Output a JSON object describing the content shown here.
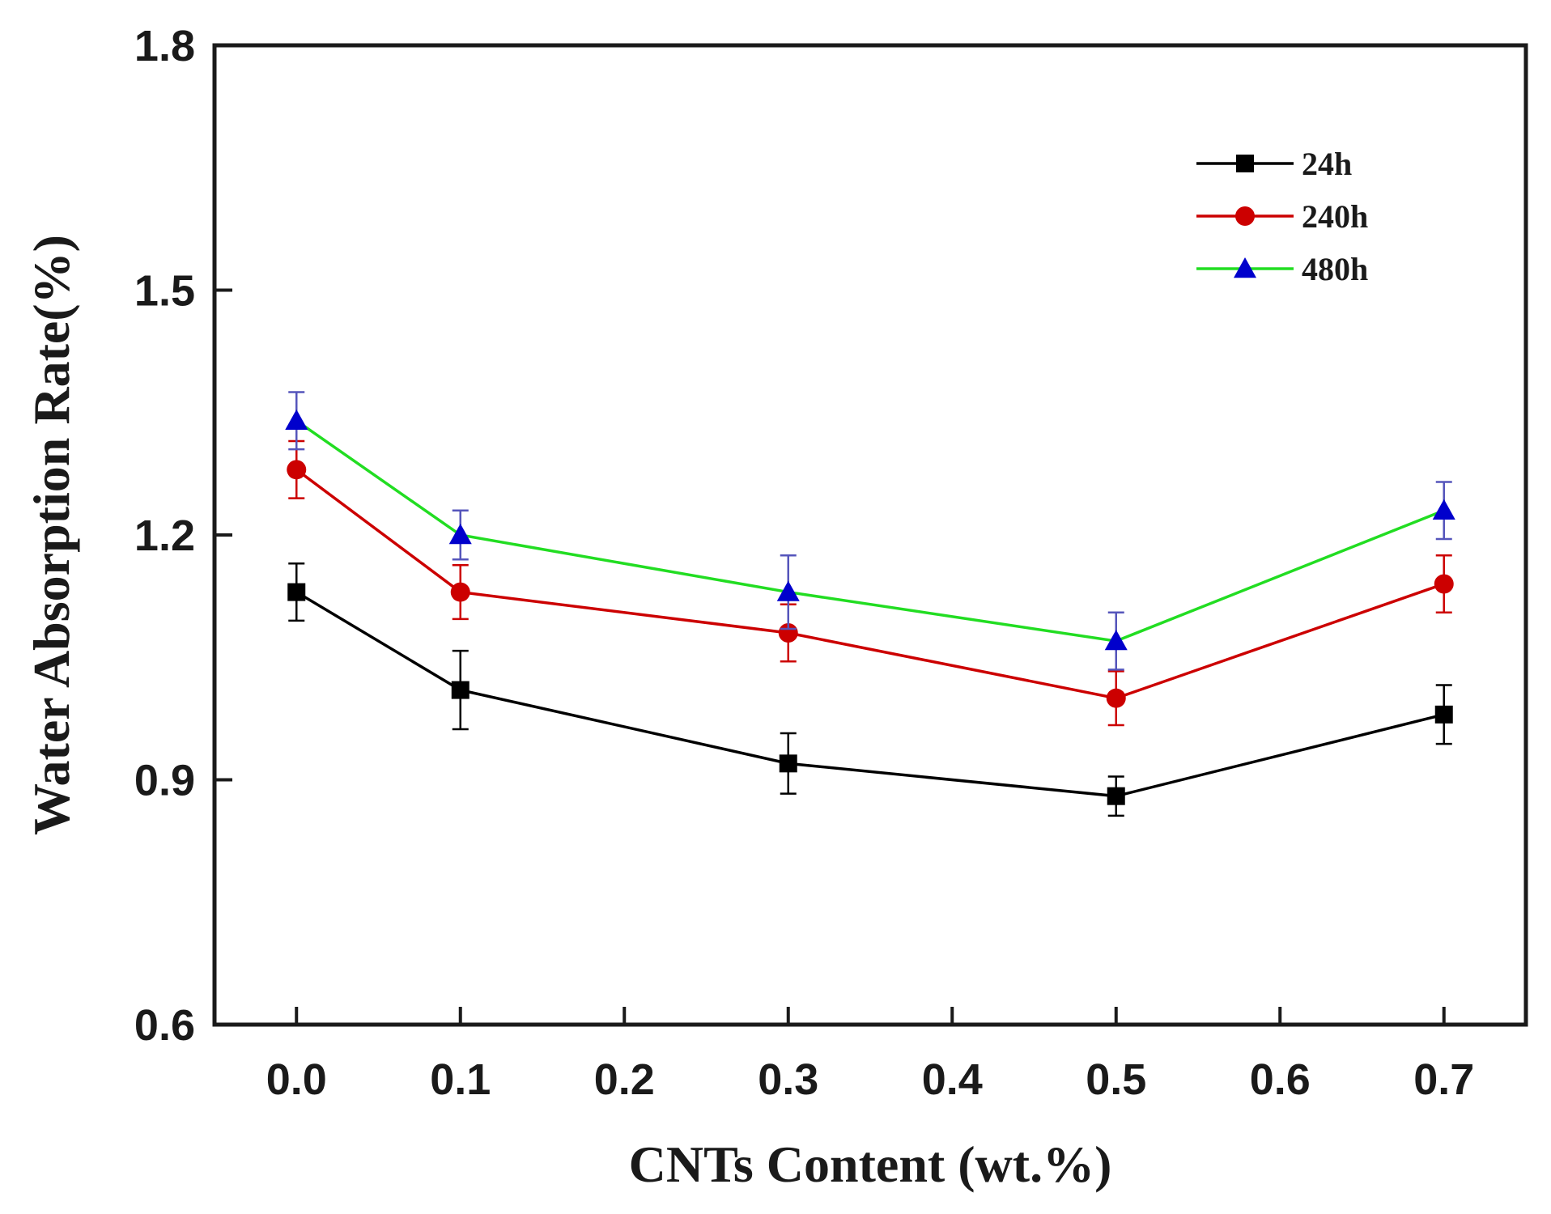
{
  "chart_data": {
    "type": "line",
    "title": "",
    "xlabel": "CNTs Content (wt.%)",
    "ylabel": "Water Absorption Rate(%)",
    "xlim": [
      -0.05,
      0.75
    ],
    "ylim": [
      0.6,
      1.8
    ],
    "xticks": [
      0.0,
      0.1,
      0.2,
      0.3,
      0.4,
      0.5,
      0.6,
      0.7
    ],
    "xtick_labels": [
      "0.0",
      "0.1",
      "0.2",
      "0.3",
      "0.4",
      "0.5",
      "0.6",
      "0.7"
    ],
    "yticks": [
      0.6,
      0.9,
      1.2,
      1.5,
      1.8
    ],
    "ytick_labels": [
      "0.6",
      "0.9",
      "1.2",
      "1.5",
      "1.8"
    ],
    "grid": false,
    "legend_position": "top-right",
    "x": [
      0.0,
      0.1,
      0.3,
      0.5,
      0.7
    ],
    "series": [
      {
        "name": "24h",
        "color": "#000000",
        "marker": "square",
        "values": [
          1.13,
          1.01,
          0.92,
          0.88,
          0.98
        ],
        "errors": [
          0.035,
          0.048,
          0.037,
          0.024,
          0.036
        ]
      },
      {
        "name": "240h",
        "color": "#cc0000",
        "marker": "circle",
        "values": [
          1.28,
          1.13,
          1.08,
          1.0,
          1.14
        ],
        "errors": [
          0.035,
          0.033,
          0.035,
          0.033,
          0.035
        ]
      },
      {
        "name": "480h",
        "color": "#22dd22",
        "marker": "triangle",
        "marker_color": "#0000cc",
        "errorbar_color": "#5555bb",
        "values": [
          1.34,
          1.2,
          1.13,
          1.07,
          1.23
        ],
        "errors": [
          0.035,
          0.03,
          0.045,
          0.035,
          0.035
        ]
      }
    ]
  }
}
